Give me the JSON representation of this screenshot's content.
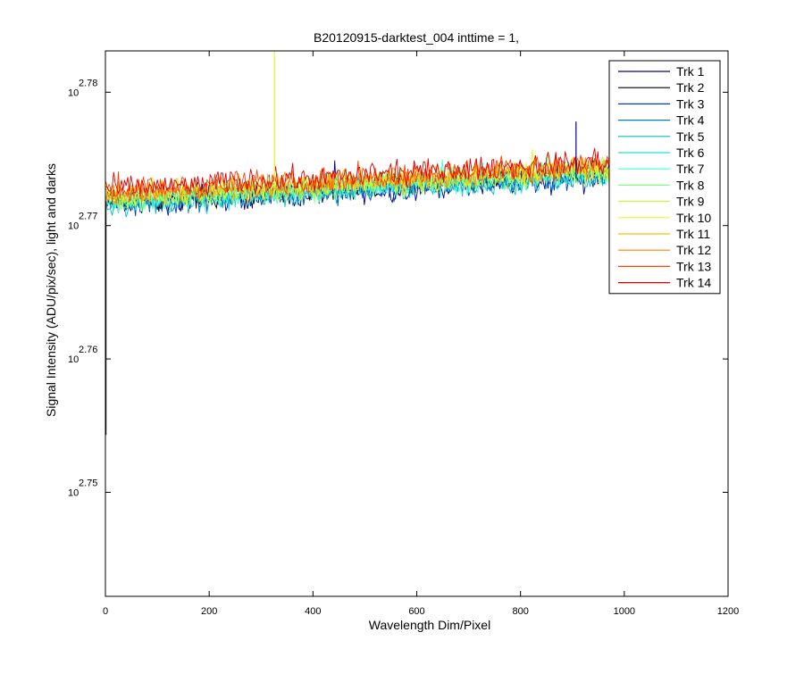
{
  "chart_data": {
    "type": "line",
    "title": "B20120915-darktest_004 inttime = 1,",
    "xlabel": "Wavelength Dim/Pixel",
    "ylabel": "Signal Intensity (ADU/pix/sec), light and darks",
    "xlim": [
      0,
      1200
    ],
    "ylim_log10": [
      2.7422,
      2.7831
    ],
    "yscale": "log",
    "x_ticks": [
      {
        "value": 0,
        "label": "0"
      },
      {
        "value": 200,
        "label": "200"
      },
      {
        "value": 400,
        "label": "400"
      },
      {
        "value": 600,
        "label": "600"
      },
      {
        "value": 800,
        "label": "800"
      },
      {
        "value": 1000,
        "label": "1000"
      },
      {
        "value": 1200,
        "label": "1200"
      }
    ],
    "y_ticks": [
      {
        "log10": 2.75,
        "base": "10",
        "exp": "2.75"
      },
      {
        "log10": 2.76,
        "base": "10",
        "exp": "2.76"
      },
      {
        "log10": 2.77,
        "base": "10",
        "exp": "2.77"
      },
      {
        "log10": 2.78,
        "base": "10",
        "exp": "2.78"
      }
    ],
    "grid": false,
    "legend_position": "top-right",
    "x_range_of_data": [
      1,
      1024
    ],
    "series": [
      {
        "name": "Trk 1",
        "color": "#00008F",
        "trend_log10": [
          [
            1,
            2.7715
          ],
          [
            1024,
            2.7738
          ]
        ]
      },
      {
        "name": "Trk 2",
        "color": "#000000",
        "trend_log10": [
          [
            1,
            2.7718
          ],
          [
            1024,
            2.7741
          ]
        ]
      },
      {
        "name": "Trk 3",
        "color": "#0040BF",
        "trend_log10": [
          [
            1,
            2.7716
          ],
          [
            1024,
            2.7739
          ]
        ]
      },
      {
        "name": "Trk 4",
        "color": "#0080B0",
        "trend_log10": [
          [
            1,
            2.7717
          ],
          [
            1024,
            2.774
          ]
        ]
      },
      {
        "name": "Trk 5",
        "color": "#00BFBF",
        "trend_log10": [
          [
            1,
            2.7716
          ],
          [
            1024,
            2.7739
          ]
        ]
      },
      {
        "name": "Trk 6",
        "color": "#20DFDF",
        "trend_log10": [
          [
            1,
            2.7717
          ],
          [
            1024,
            2.774
          ]
        ]
      },
      {
        "name": "Trk 7",
        "color": "#40FFDF",
        "trend_log10": [
          [
            1,
            2.7718
          ],
          [
            1024,
            2.7741
          ]
        ]
      },
      {
        "name": "Trk 8",
        "color": "#80FF80",
        "trend_log10": [
          [
            1,
            2.7719
          ],
          [
            1024,
            2.7742
          ]
        ]
      },
      {
        "name": "Trk 9",
        "color": "#BFFF40",
        "trend_log10": [
          [
            1,
            2.772
          ],
          [
            1024,
            2.7743
          ]
        ]
      },
      {
        "name": "Trk 10",
        "color": "#DFFF20",
        "trend_log10": [
          [
            1,
            2.7721
          ],
          [
            1024,
            2.7744
          ]
        ]
      },
      {
        "name": "Trk 11",
        "color": "#FFBF00",
        "trend_log10": [
          [
            1,
            2.7722
          ],
          [
            1024,
            2.7745
          ]
        ]
      },
      {
        "name": "Trk 12",
        "color": "#FF8000",
        "trend_log10": [
          [
            1,
            2.7724
          ],
          [
            1024,
            2.7746
          ]
        ]
      },
      {
        "name": "Trk 13",
        "color": "#FF4000",
        "trend_log10": [
          [
            1,
            2.7726
          ],
          [
            1024,
            2.7748
          ]
        ]
      },
      {
        "name": "Trk 14",
        "color": "#DF0000",
        "trend_log10": [
          [
            1,
            2.7727
          ],
          [
            1024,
            2.7749
          ]
        ]
      }
    ],
    "notable_spikes": [
      {
        "series": "Trk 10",
        "x": 326,
        "y_log10": 2.7831
      },
      {
        "series": "Trk 1",
        "x": 907,
        "y_log10": 2.7778
      },
      {
        "series": "Trk 2",
        "x": 1,
        "y_log10": 2.7543
      }
    ]
  }
}
